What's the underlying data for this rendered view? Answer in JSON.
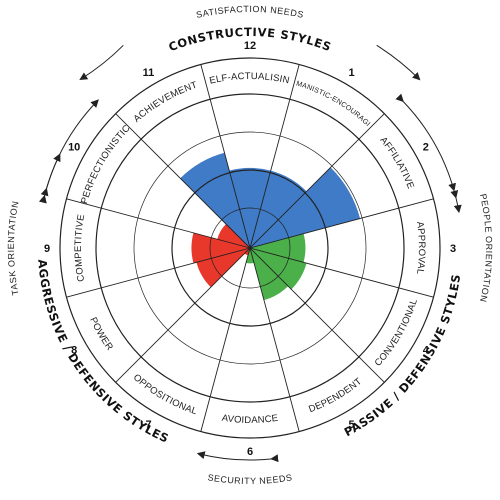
{
  "chart_data": {
    "type": "circumplex",
    "scale_max": 100,
    "segments": [
      {
        "num": "1",
        "label": "HUMANISTIC-ENCOURAGING",
        "value": 52,
        "group": "constructive"
      },
      {
        "num": "2",
        "label": "AFFILIATIVE",
        "value": 74,
        "group": "constructive"
      },
      {
        "num": "3",
        "label": "APPROVAL",
        "value": 36,
        "group": "passive"
      },
      {
        "num": "4",
        "label": "CONVENTIONAL",
        "value": 38,
        "group": "passive"
      },
      {
        "num": "5",
        "label": "DEPENDENT",
        "value": 35,
        "group": "passive"
      },
      {
        "num": "6",
        "label": "AVOIDANCE",
        "value": 10,
        "group": "passive"
      },
      {
        "num": "7",
        "label": "OPPOSITIONAL",
        "value": 5,
        "group": "aggressive"
      },
      {
        "num": "8",
        "label": "POWER",
        "value": 36,
        "group": "aggressive"
      },
      {
        "num": "9",
        "label": "COMPETITIVE",
        "value": 38,
        "group": "aggressive"
      },
      {
        "num": "10",
        "label": "PERFECTIONISTIC",
        "value": 22,
        "group": "aggressive"
      },
      {
        "num": "11",
        "label": "ACHIEVEMENT",
        "value": 64,
        "group": "constructive"
      },
      {
        "num": "12",
        "label": "SELF-ACTUALISING",
        "value": 52,
        "group": "constructive"
      }
    ],
    "groups": {
      "constructive": {
        "label": "CONSTRUCTIVE STYLES",
        "color": "#3f7bc6"
      },
      "passive": {
        "label": "PASSIVE / DEFENSIVE STYLES",
        "color": "#4cb04a"
      },
      "aggressive": {
        "label": "AGGRESSIVE / DEFENSIVE STYLES",
        "color": "#e8372b"
      }
    },
    "orientations": {
      "top": "SATISFACTION NEEDS",
      "bottom": "SECURITY NEEDS",
      "left": "TASK ORIENTATION",
      "right": "PEOPLE ORIENTATION"
    }
  }
}
